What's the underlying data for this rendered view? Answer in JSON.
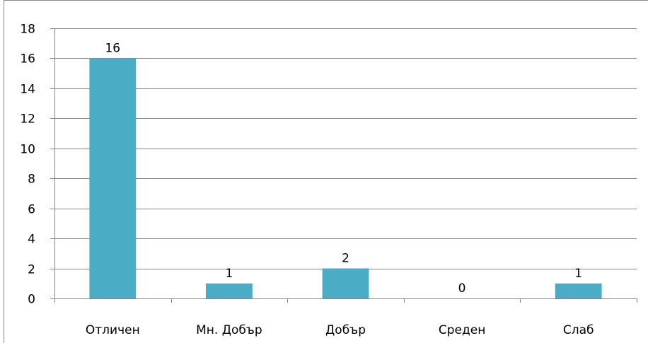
{
  "chart_data": {
    "type": "bar",
    "categories": [
      "Отличен",
      "Мн. Добър",
      "Добър",
      "Среден",
      "Слаб"
    ],
    "values": [
      16,
      1,
      2,
      0,
      1
    ],
    "data_labels": [
      "16",
      "1",
      "2",
      "0",
      "1"
    ],
    "title": "",
    "xlabel": "",
    "ylabel": "",
    "ylim": [
      0,
      18
    ],
    "yticks": [
      "0",
      "2",
      "4",
      "6",
      "8",
      "10",
      "12",
      "14",
      "16",
      "18"
    ],
    "grid": true,
    "legend": "none"
  },
  "colors": {
    "bar": "#4BACC6",
    "grid": "#868686",
    "axis": "#868686",
    "border": "#868686"
  }
}
